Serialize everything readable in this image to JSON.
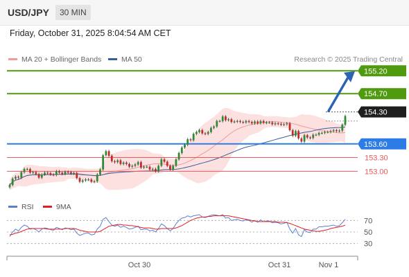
{
  "header": {
    "symbol": "USD/JPY",
    "timeframe": "30 MIN"
  },
  "datetime": "Friday, October 31, 2025 8:04:54 AM CET",
  "legend": {
    "bollinger": "MA 20 + Bollinger Bands",
    "ma50": "MA 50",
    "rsi": "RSI",
    "rsi_ma": "9MA"
  },
  "credit": "Research © 2025 Trading Central",
  "colors": {
    "resistance": "#4f9a0f",
    "pivot": "#2d7be5",
    "support": "#e85a5a",
    "price": "#1f1f1f",
    "arrow": "#2e63b4",
    "band": "#fcd5d5",
    "ma20": "#ef9a9a",
    "ma50": "#355f9c",
    "up": "#2f8a34",
    "down": "#c42a2a",
    "rsi": "#5b7fd0",
    "rsi_ma": "#e02020"
  },
  "chart_data": {
    "type": "candlestick",
    "y_range": [
      152.55,
      155.28
    ],
    "x_ticks": [
      "Oct 30",
      "Oct 31",
      "Nov 1"
    ],
    "levels": [
      {
        "value": 155.2,
        "label": "155.20",
        "kind": "resistance"
      },
      {
        "value": 154.7,
        "label": "154.70",
        "kind": "resistance"
      },
      {
        "value": 154.3,
        "label": "154.30",
        "kind": "price"
      },
      {
        "value": 153.6,
        "label": "153.60",
        "kind": "pivot"
      },
      {
        "value": 153.3,
        "label": "153.30",
        "kind": "support"
      },
      {
        "value": 153.0,
        "label": "153.00",
        "kind": "support"
      }
    ],
    "closes": [
      152.7,
      152.84,
      152.88,
      152.86,
      152.98,
      153.05,
      153.05,
      152.97,
      152.98,
      152.94,
      152.86,
      152.93,
      152.97,
      152.96,
      152.93,
      152.92,
      153.0,
      152.97,
      152.94,
      152.99,
      152.98,
      152.95,
      152.96,
      152.85,
      152.77,
      152.8,
      152.82,
      152.82,
      152.77,
      152.78,
      152.93,
      153.04,
      153.35,
      153.44,
      153.34,
      153.22,
      153.2,
      153.24,
      153.16,
      153.19,
      153.16,
      153.1,
      153.12,
      153.15,
      153.2,
      153.08,
      153.1,
      153.1,
      153.04,
      153.05,
      153.0,
      153.12,
      153.26,
      153.21,
      153.12,
      153.04,
      153.12,
      153.26,
      153.4,
      153.52,
      153.58,
      153.7,
      153.68,
      153.82,
      153.86,
      153.9,
      153.83,
      153.82,
      153.86,
      153.95,
      153.98,
      154.1,
      154.1,
      154.2,
      154.12,
      154.14,
      154.08,
      154.09,
      154.1,
      154.08,
      154.07,
      154.1,
      154.08,
      154.05,
      154.09,
      154.05,
      154.1,
      154.06,
      154.07,
      154.07,
      154.03,
      154.05,
      154.04,
      154.02,
      154.03,
      154.05,
      153.9,
      153.78,
      153.88,
      153.72,
      153.65,
      153.79,
      153.74,
      153.73,
      153.8,
      153.8,
      153.84,
      153.84,
      153.86,
      153.86,
      153.88,
      153.9,
      153.88,
      153.89,
      154.02,
      154.21
    ],
    "rsi_scale": {
      "range": [
        20,
        80
      ],
      "ticks": [
        70,
        50,
        30
      ]
    },
    "rsi": [
      42,
      50,
      55,
      52,
      58,
      62,
      60,
      55,
      56,
      54,
      50,
      55,
      57,
      56,
      54,
      53,
      58,
      56,
      54,
      57,
      56,
      54,
      55,
      48,
      44,
      46,
      48,
      48,
      45,
      46,
      55,
      60,
      72,
      75,
      68,
      62,
      60,
      62,
      58,
      60,
      58,
      55,
      56,
      58,
      60,
      54,
      55,
      55,
      52,
      53,
      50,
      56,
      64,
      61,
      56,
      52,
      56,
      64,
      70,
      74,
      75,
      78,
      76,
      78,
      79,
      80,
      76,
      75,
      77,
      79,
      80,
      79,
      78,
      80,
      74,
      75,
      70,
      71,
      72,
      70,
      69,
      71,
      70,
      67,
      70,
      67,
      71,
      68,
      69,
      69,
      66,
      67,
      66,
      64,
      65,
      67,
      55,
      48,
      56,
      45,
      42,
      54,
      50,
      49,
      55,
      55,
      59,
      59,
      60,
      60,
      61,
      62,
      60,
      61,
      66,
      72
    ],
    "rsi_ma": [
      45,
      46,
      48,
      49,
      51,
      53,
      55,
      56,
      56,
      56,
      56,
      56,
      56,
      55,
      55,
      55,
      55,
      55,
      55,
      56,
      56,
      56,
      56,
      55,
      53,
      52,
      51,
      50,
      50,
      50,
      50,
      51,
      54,
      57,
      60,
      61,
      62,
      63,
      63,
      62,
      62,
      61,
      61,
      60,
      59,
      58,
      57,
      57,
      57,
      56,
      55,
      55,
      56,
      56,
      56,
      56,
      56,
      57,
      59,
      61,
      64,
      67,
      70,
      72,
      74,
      75,
      76,
      76,
      77,
      77,
      78,
      78,
      78,
      78,
      78,
      78,
      77,
      76,
      75,
      74,
      73,
      72,
      71,
      70,
      69,
      68,
      68,
      68,
      68,
      68,
      68,
      68,
      67,
      67,
      67,
      66,
      65,
      63,
      61,
      59,
      57,
      55,
      54,
      53,
      52,
      51,
      51,
      52,
      53,
      54,
      56,
      57,
      58,
      59,
      60,
      62
    ]
  }
}
